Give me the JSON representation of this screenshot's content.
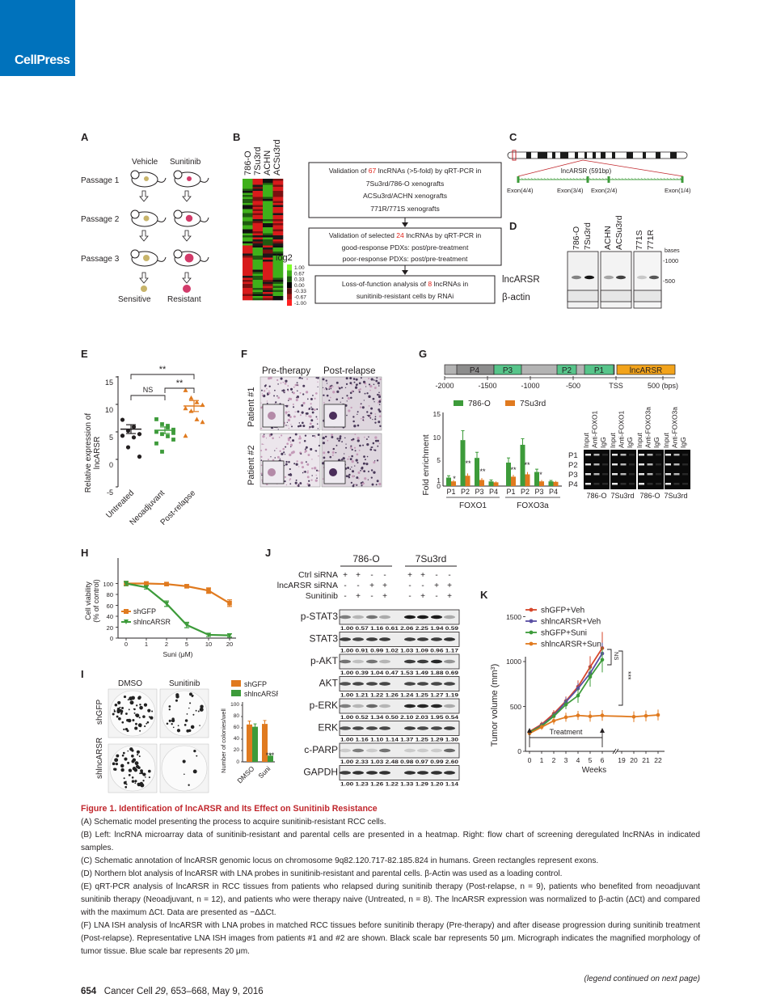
{
  "brand": "CellPress",
  "panels": {
    "A": {
      "letter": "A",
      "col_labels": [
        "Vehicle",
        "Sunitinib"
      ],
      "row_labels": [
        "Passage 1",
        "Passage 2",
        "Passage 3"
      ],
      "bottom_labels": [
        "Sensitive",
        "Resistant"
      ]
    },
    "B": {
      "letter": "B",
      "samples": [
        "786-O",
        "7Su3rd",
        "ACHN",
        "ACSu3rd"
      ],
      "legend_title": "log2",
      "legend_values": [
        "1.00",
        "0.67",
        "0.33",
        "0.00",
        "-0.33",
        "-0.67",
        "-1.00"
      ],
      "legend_colors": [
        "#7fff2a",
        "#3fb01a",
        "#1f5a10",
        "#000000",
        "#5a0f0f",
        "#a81a1a",
        "#ff2020"
      ],
      "flow1_pre": "Validation of ",
      "flow1_num": "67",
      "flow1_post": " lncRNAs (>5-fold) by qRT-PCR in",
      "flow1_line2": "7Su3rd/786-O xenografts",
      "flow1_line3": "ACSu3rd/ACHN xenografts",
      "flow1_line4": "771R/771S xenografts",
      "flow2_pre": "Validation of selected ",
      "flow2_num": "24",
      "flow2_post": " lncRNAs by qRT-PCR in",
      "flow2_line2": "good-response PDXs: post/pre-treatment",
      "flow2_line3": "poor-response PDXs: post/pre-treatment",
      "flow3_pre": "Loss-of-function analysis of ",
      "flow3_num": "8",
      "flow3_post": " lncRNAs in",
      "flow3_line2": "sunitinib-resistant cells by RNAi",
      "highlight_color": "#e2231a"
    },
    "C": {
      "letter": "C",
      "gene_label": "lncARSR (591bp)",
      "exons": [
        "Exon(4/4)",
        "Exon(3/4)",
        "Exon(2/4)",
        "Exon(1/4)"
      ]
    },
    "D": {
      "letter": "D",
      "lanes": [
        "786-O",
        "7Su3rd",
        "ACHN",
        "ACSu3rd",
        "771S",
        "771R"
      ],
      "bases_label": "bases",
      "markers": [
        "-1000",
        "-500"
      ],
      "rows": [
        "lncARSR",
        "β-actin"
      ]
    },
    "E": {
      "letter": "E",
      "ylabel_line1": "Relative expression of",
      "ylabel_line2": "lncARSR",
      "yticks": [
        "15",
        "10",
        "5",
        "0",
        "-5"
      ],
      "groups": [
        "Untreated",
        "Neoadjuvant",
        "Post-relapse"
      ],
      "sig": [
        "NS",
        "**",
        "**"
      ]
    },
    "F": {
      "letter": "F",
      "col_labels": [
        "Pre-therapy",
        "Post-relapse"
      ],
      "row_labels": [
        "Patient #1",
        "Patient #2"
      ]
    },
    "G": {
      "letter": "G",
      "promoter_regions": [
        "P4",
        "P3",
        "P2",
        "P1",
        "lncARSR"
      ],
      "coord_labels": [
        "-2000",
        "-1500",
        "-1000",
        "-500",
        "TSS",
        "500 (bps)"
      ],
      "legend": [
        "786-O",
        "7Su3rd"
      ],
      "ylabel": "Fold enrichment",
      "yticks": [
        "15",
        "10",
        "5",
        "1",
        "0"
      ],
      "xticks": [
        "P1",
        "P2",
        "P3",
        "P4",
        "P1",
        "P2",
        "P3",
        "P4"
      ],
      "groups": [
        "FOXO1",
        "FOXO3a"
      ],
      "gel_lanes": [
        "Input",
        "Anti-FOXO1",
        "IgG",
        "Input",
        "Anti-FOXO1",
        "IgG",
        "Input",
        "Anti-FOXO3a",
        "IgG",
        "Input",
        "Anti-FOXO3a",
        "IgG"
      ],
      "gel_rows": [
        "P1",
        "P2",
        "P3",
        "P4"
      ],
      "gel_bottom": [
        "786-O",
        "7Su3rd",
        "786-O",
        "7Su3rd"
      ],
      "stars": [
        "*",
        "**",
        "**",
        "**",
        "**",
        "*"
      ],
      "colors": {
        "a": "#3d9b3a",
        "b": "#e07a1f",
        "p_box": "#8c8c8c",
        "p_green": "#57c48a",
        "gene": "#f2a31b"
      }
    },
    "H": {
      "letter": "H",
      "ylabel_line1": "Cell viability",
      "ylabel_line2": "(% of control)",
      "xlabel": "Suni (μM)",
      "xticks": [
        "0",
        "1",
        "2",
        "5",
        "10",
        "20"
      ],
      "yticks": [
        "100",
        "80",
        "60",
        "40",
        "20",
        "0"
      ],
      "legend": [
        "shGFP",
        "shlncARSR"
      ]
    },
    "I": {
      "letter": "I",
      "col_labels": [
        "DMSO",
        "Sunitinib"
      ],
      "row_labels": [
        "shGFP",
        "shlncARSR"
      ],
      "legend": [
        "shGFP",
        "shlncARSR"
      ],
      "ylabel": "Number of colonies/well",
      "yticks": [
        "100",
        "80",
        "60",
        "40",
        "20",
        "0"
      ],
      "xticks": [
        "DMSO",
        "Suni"
      ],
      "sig": "***"
    },
    "J": {
      "letter": "J",
      "cell_lines": [
        "786-O",
        "7Su3rd"
      ],
      "treatment_rows": [
        {
          "label": "Ctrl siRNA",
          "marks": [
            "+",
            "+",
            "-",
            "-",
            "+",
            "+",
            "-",
            "-"
          ]
        },
        {
          "label": "lncARSR siRNA",
          "marks": [
            "-",
            "-",
            "+",
            "+",
            "-",
            "-",
            "+",
            "+"
          ]
        },
        {
          "label": "Sunitinib",
          "marks": [
            "-",
            "+",
            "-",
            "+",
            "-",
            "+",
            "-",
            "+"
          ]
        }
      ],
      "blots": [
        {
          "name": "p-STAT3",
          "values": "1.00 0.57 1.16 0.61 2.06 2.25 1.94 0.59"
        },
        {
          "name": "STAT3",
          "values": "1.00 0.91 0.99 1.02 1.03 1.09 0.96 1.17"
        },
        {
          "name": "p-AKT",
          "values": "1.00 0.39 1.04 0.47 1.53 1.49 1.88 0.69"
        },
        {
          "name": "AKT",
          "values": "1.00 1.21 1.22 1.26 1.24 1.25 1.27 1.19"
        },
        {
          "name": "p-ERK",
          "values": "1.00 0.52 1.34 0.50 2.10 2.03 1.95 0.54"
        },
        {
          "name": "ERK",
          "values": "1.00 1.16 1.10 1.14 1.37 1.25 1.29 1.30"
        },
        {
          "name": "c-PARP",
          "values": "1.00 2.33 1.03 2.48 0.98 0.97 0.99 2.60"
        },
        {
          "name": "GAPDH",
          "values": "1.00 1.23 1.26 1.22 1.33 1.29 1.20 1.14"
        }
      ]
    },
    "K": {
      "letter": "K",
      "legend": [
        "shGFP+Veh",
        "shlncARSR+Veh",
        "shGFP+Suni",
        "shlncARSR+Suni"
      ],
      "colors": [
        "#d6462a",
        "#5a4fa3",
        "#3d9b3a",
        "#e07a1f"
      ],
      "ylabel": "Tumor volume (mm",
      "ylabel_sup": "3",
      "ylabel_end": ")",
      "yticks": [
        "1500",
        "1000",
        "500",
        "0"
      ],
      "xticks": [
        "0",
        "1",
        "2",
        "3",
        "4",
        "5",
        "6",
        "19",
        "20",
        "21",
        "22"
      ],
      "xlabel": "Weeks",
      "treatment_label": "Treatment",
      "sig": [
        "NS",
        "***"
      ]
    }
  },
  "caption": {
    "title": "Figure 1.  Identification of lncARSR and Its Effect on Sunitinib Resistance",
    "A": "(A) Schematic model presenting the process to acquire sunitinib-resistant RCC cells.",
    "B": "(B) Left: lncRNA microarray data of sunitinib-resistant and parental cells are presented in a heatmap. Right: flow chart of screening deregulated lncRNAs in indicated samples.",
    "C": "(C) Schematic annotation of lncARSR genomic locus on chromosome 9q82.120.717-82.185.824 in humans. Green rectangles represent exons.",
    "D": "(D) Northern blot analysis of lncARSR with LNA probes in sunitinib-resistant and parental cells. β-Actin was used as a loading control.",
    "E": "(E) qRT-PCR analysis of lncARSR in RCC tissues from patients who relapsed during sunitinib therapy (Post-relapse, n = 9), patients who benefited from neoadjuvant sunitinib therapy (Neoadjuvant, n = 12), and patients who were therapy naive (Untreated, n = 8). The lncARSR expression was normalized to β-actin (ΔCt) and compared with the maximum ΔCt. Data are presented as −ΔΔCt.",
    "F": "(F) LNA ISH analysis of lncARSR with LNA probes in matched RCC tissues before sunitinib therapy (Pre-therapy) and after disease progression during sunitinib treatment (Post-relapse). Representative LNA ISH images from patients #1 and #2 are shown. Black scale bar represents 50 μm. Micrograph indicates the magnified morphology of tumor tissue. Blue scale bar represents 20 μm."
  },
  "continued": "(legend continued on next page)",
  "footer": {
    "page": "654",
    "journal": "Cancer Cell ",
    "volume": "29",
    "rest": ", 653–668, May 9, 2016"
  }
}
